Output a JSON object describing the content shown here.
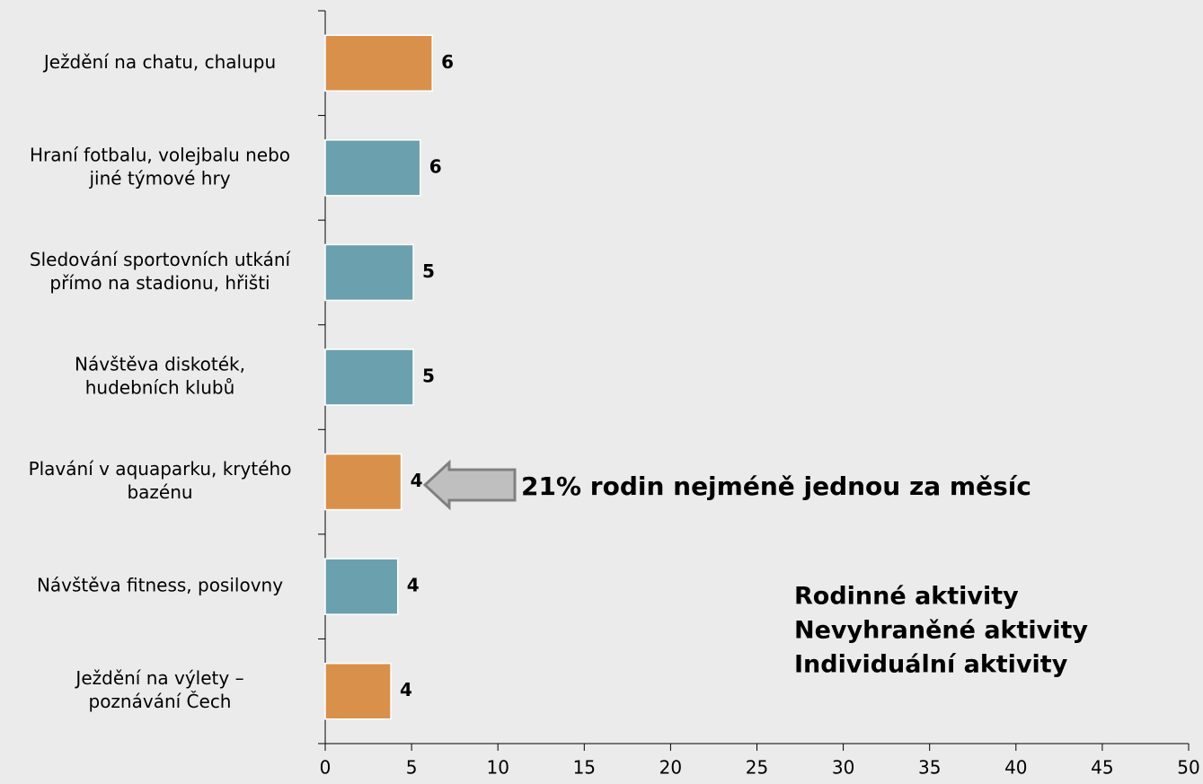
{
  "chart_data": {
    "type": "hbar",
    "categories": [
      [
        "Ježdění na chatu, chalupu"
      ],
      [
        "Hraní fotbalu, volejbalu nebo",
        "jiné týmové hry"
      ],
      [
        "Sledování sportovních utkání",
        "přímo na stadionu, hřišti"
      ],
      [
        "Návštěva diskoték,",
        "hudebních klubů"
      ],
      [
        "Plavání v aquaparku, krytého",
        "bazénu"
      ],
      [
        "Návštěva fitness, posilovny"
      ],
      [
        "Ježdění na výlety –",
        "poznávání Čech"
      ]
    ],
    "values": [
      6.2,
      5.5,
      5.1,
      5.1,
      4.4,
      4.2,
      3.8
    ],
    "value_labels": [
      "6",
      "6",
      "5",
      "5",
      "4",
      "4",
      "4"
    ],
    "colors": [
      "#D9904A",
      "#6BA0AE",
      "#6BA0AE",
      "#6BA0AE",
      "#D9904A",
      "#6BA0AE",
      "#D9904A"
    ],
    "xlim": [
      0,
      50
    ],
    "xticks": [
      0,
      5,
      10,
      15,
      20,
      25,
      30,
      35,
      40,
      45,
      50
    ],
    "annotation": "21% rodin nejméně jednou za měsíc",
    "legend": [
      {
        "name": "Rodinné aktivity",
        "color": "#D9904A"
      },
      {
        "name": "Nevyhraněné aktivity",
        "color": "#C2C165"
      },
      {
        "name": "Individuální aktivity",
        "color": "#6BA0AE"
      }
    ]
  }
}
